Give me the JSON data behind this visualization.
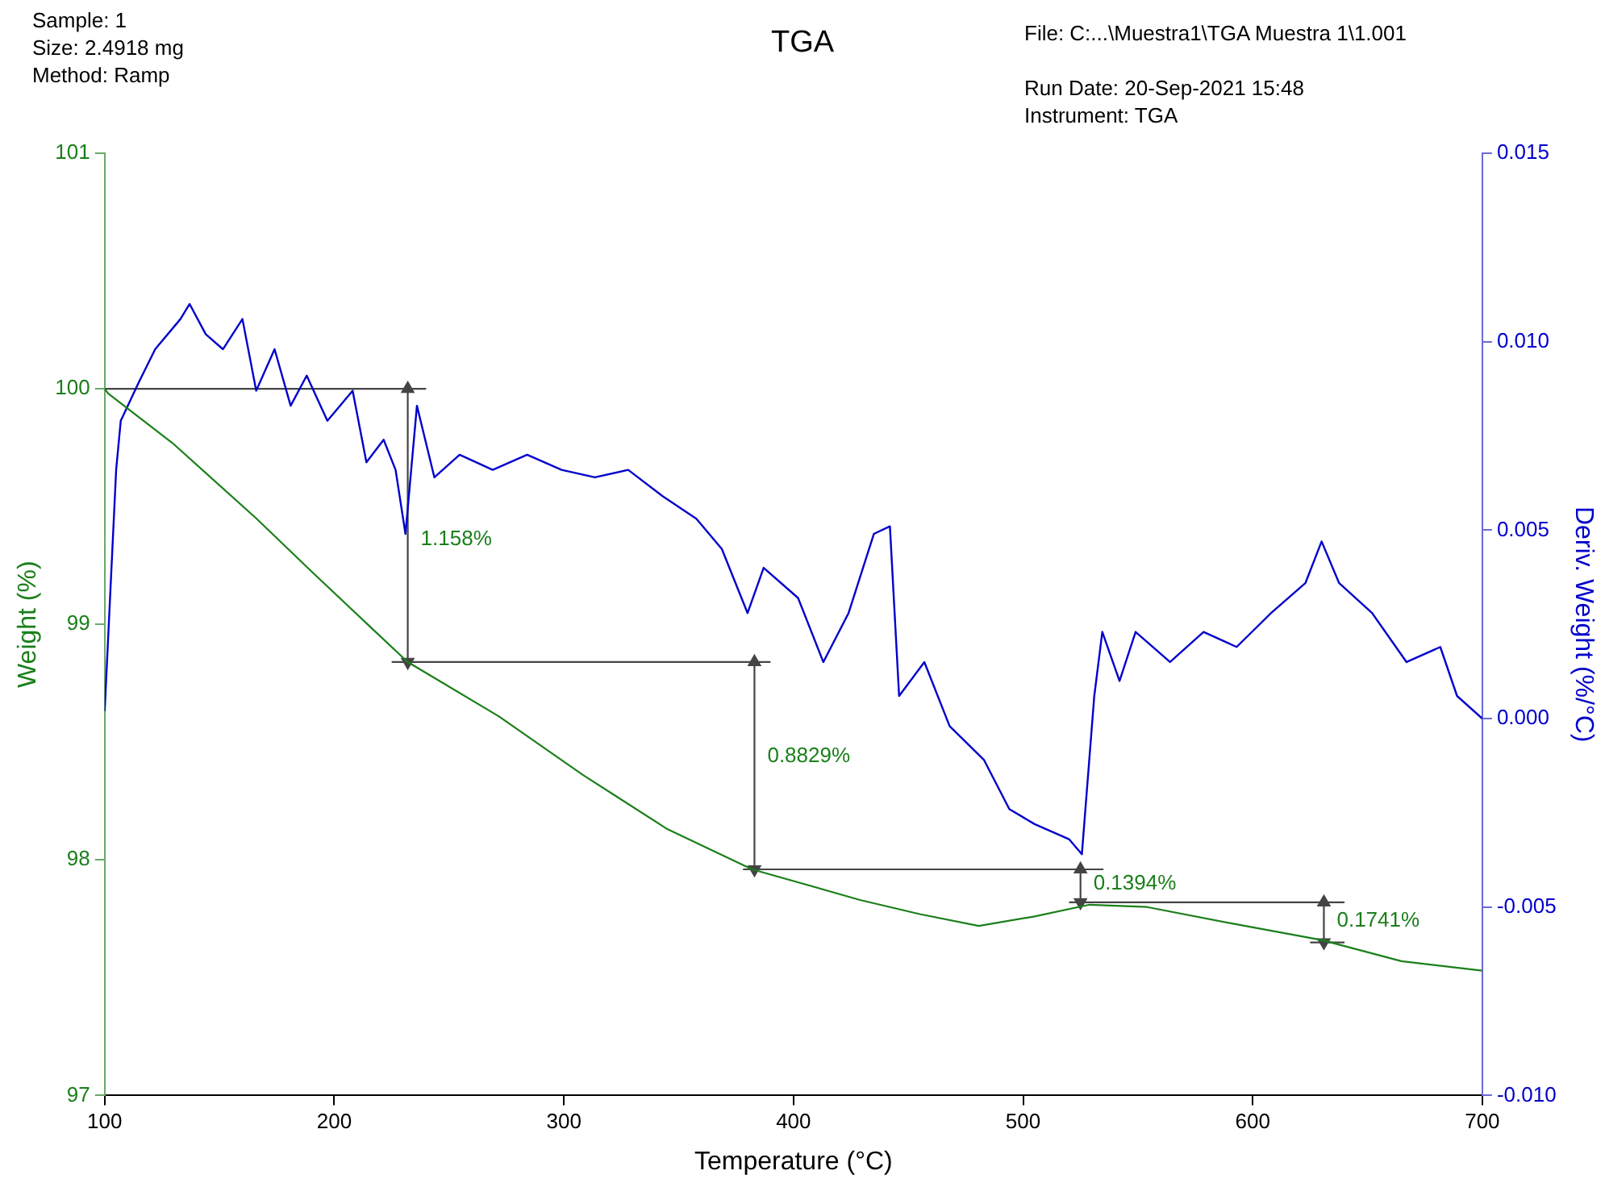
{
  "chart_data": {
    "type": "line",
    "title": "TGA",
    "xlabel": "Temperature (°C)",
    "ylabel": "Weight (%)",
    "y2label": "Deriv. Weight (%/°C)",
    "annotations": [
      "Sample: 1",
      "Size:  2.4918 mg",
      "Method: Ramp",
      "File: C:...\\Muestra1\\TGA Muestra 1\\1.001",
      "Run Date: 20-Sep-2021 15:48",
      "Instrument: TGA",
      {
        "text": "1.158%",
        "x": 232,
        "y": 99.36
      },
      {
        "text": "0.8829%",
        "x": 383,
        "y": 98.44
      },
      {
        "text": "0.1394%",
        "x": 525,
        "y": 97.9
      },
      {
        "text": "0.1741%",
        "x": 631,
        "y": 97.74
      }
    ],
    "series": [
      {
        "color": "#1a7f1a",
        "x": [
          100,
          101.5,
          129.5,
          166,
          190.6,
          215.6,
          232,
          271.6,
          308.4,
          345.2,
          382,
          429,
          455,
          480.7,
          505,
          529,
          554,
          591,
          630,
          664.8,
          700
        ],
        "values": [
          100.0,
          99.98,
          99.77,
          99.45,
          99.22,
          98.99,
          98.84,
          98.61,
          98.36,
          98.13,
          97.96,
          97.83,
          97.77,
          97.72,
          97.76,
          97.81,
          97.8,
          97.73,
          97.66,
          97.57,
          97.53
        ]
      },
      {
        "color": "#0000cc",
        "axis": "y2",
        "x": [
          100,
          105,
          107,
          114.7,
          122,
          133,
          137,
          144,
          151.5,
          160,
          166,
          174,
          181,
          188,
          197,
          208,
          214,
          221.5,
          226.7,
          231,
          236,
          243.6,
          254.6,
          269,
          284,
          299,
          313.5,
          328,
          343,
          357.7,
          368.8,
          380,
          387,
          402,
          413,
          424,
          435,
          442,
          446,
          457,
          468,
          483,
          494,
          505,
          520,
          525.6,
          531,
          534.5,
          542,
          549,
          564,
          578.6,
          593,
          608,
          623,
          630,
          637.6,
          652,
          667,
          681.7,
          689,
          700
        ],
        "values": [
          0.0002,
          0.0066,
          0.0079,
          0.0089,
          0.0098,
          0.0106,
          0.011,
          0.0102,
          0.0098,
          0.0106,
          0.0087,
          0.0098,
          0.0083,
          0.0091,
          0.0079,
          0.0087,
          0.0068,
          0.0074,
          0.0066,
          0.0049,
          0.0083,
          0.0064,
          0.007,
          0.0066,
          0.007,
          0.0066,
          0.0064,
          0.0066,
          0.0059,
          0.0053,
          0.0045,
          0.0028,
          0.004,
          0.0032,
          0.0015,
          0.0028,
          0.0049,
          0.0051,
          0.0006,
          0.0015,
          -0.0002,
          -0.0011,
          -0.0024,
          -0.0028,
          -0.0032,
          -0.0036,
          0.0006,
          0.0023,
          0.001,
          0.0023,
          0.0015,
          0.0023,
          0.0019,
          0.0028,
          0.0036,
          0.0047,
          0.0036,
          0.0028,
          0.0015,
          0.0019,
          0.0006,
          0.0
        ]
      },
      {
        "color": "#444444",
        "x": [
          100,
          240
        ],
        "values": [
          100.0,
          100.0
        ]
      },
      {
        "color": "#444444",
        "x": [
          225,
          390
        ],
        "values": [
          98.84,
          98.84
        ]
      },
      {
        "color": "#444444",
        "x": [
          378,
          535
        ],
        "values": [
          97.96,
          97.96
        ]
      },
      {
        "color": "#444444",
        "x": [
          520,
          640
        ],
        "values": [
          97.82,
          97.82
        ]
      },
      {
        "color": "#444444",
        "x": [
          625,
          640
        ],
        "values": [
          97.65,
          97.65
        ]
      },
      {
        "color": "#444444",
        "marker": "triangle",
        "x": [
          232,
          232
        ],
        "values": [
          100.0,
          98.84
        ]
      },
      {
        "color": "#444444",
        "marker": "triangle",
        "x": [
          383,
          383
        ],
        "values": [
          98.84,
          97.96
        ]
      },
      {
        "color": "#444444",
        "marker": "triangle",
        "x": [
          525,
          525
        ],
        "values": [
          97.96,
          97.82
        ]
      },
      {
        "color": "#444444",
        "marker": "triangle",
        "x": [
          631,
          631
        ],
        "values": [
          97.82,
          97.65
        ]
      }
    ],
    "xlim": [
      100,
      700
    ],
    "xticks": [
      100,
      200,
      300,
      400,
      500,
      600,
      700
    ],
    "ylim": [
      97,
      101
    ],
    "yticks": [
      97,
      98,
      99,
      100,
      101
    ],
    "y2lim": [
      -0.01,
      0.015
    ],
    "y2ticks": [
      {
        "value": -0.01,
        "label": "-0.010"
      },
      {
        "value": -0.005,
        "label": "-0.005"
      },
      {
        "value": 0,
        "label": "0.000"
      },
      {
        "value": 0.005,
        "label": "0.005"
      },
      {
        "value": 0.01,
        "label": "0.010"
      },
      {
        "value": 0.015,
        "label": "0.015"
      }
    ],
    "grid": false,
    "legend": false,
    "marker": "none",
    "line_style": "solid"
  }
}
